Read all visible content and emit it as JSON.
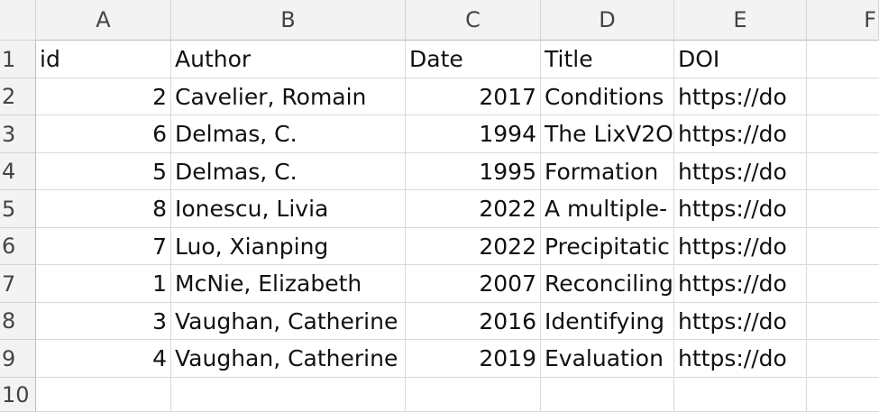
{
  "columns": [
    "A",
    "B",
    "C",
    "D",
    "E",
    "F"
  ],
  "rows": [
    "1",
    "2",
    "3",
    "4",
    "5",
    "6",
    "7",
    "8",
    "9",
    "10"
  ],
  "header": {
    "id": "id",
    "author": "Author",
    "date": "Date",
    "title": "Title",
    "doi": "DOI"
  },
  "data": [
    {
      "id": "2",
      "author": "Cavelier, Romain",
      "date": "2017",
      "title": "Conditions",
      "doi": "https://do"
    },
    {
      "id": "6",
      "author": "Delmas, C.",
      "date": "1994",
      "title": "The LixV2O",
      "doi": "https://do"
    },
    {
      "id": "5",
      "author": "Delmas, C.",
      "date": "1995",
      "title": "Formation",
      "doi": "https://do"
    },
    {
      "id": "8",
      "author": "Ionescu, Livia",
      "date": "2022",
      "title": "A multiple-",
      "doi": "https://do"
    },
    {
      "id": "7",
      "author": "Luo, Xianping",
      "date": "2022",
      "title": "Precipitatic",
      "doi": "https://do"
    },
    {
      "id": "1",
      "author": "McNie, Elizabeth",
      "date": "2007",
      "title": "Reconciling",
      "doi": "https://do"
    },
    {
      "id": "3",
      "author": "Vaughan, Catherine",
      "date": "2016",
      "title": "Identifying",
      "doi": "https://do"
    },
    {
      "id": "4",
      "author": "Vaughan, Catherine",
      "date": "2019",
      "title": "Evaluation",
      "doi": "https://do"
    }
  ]
}
